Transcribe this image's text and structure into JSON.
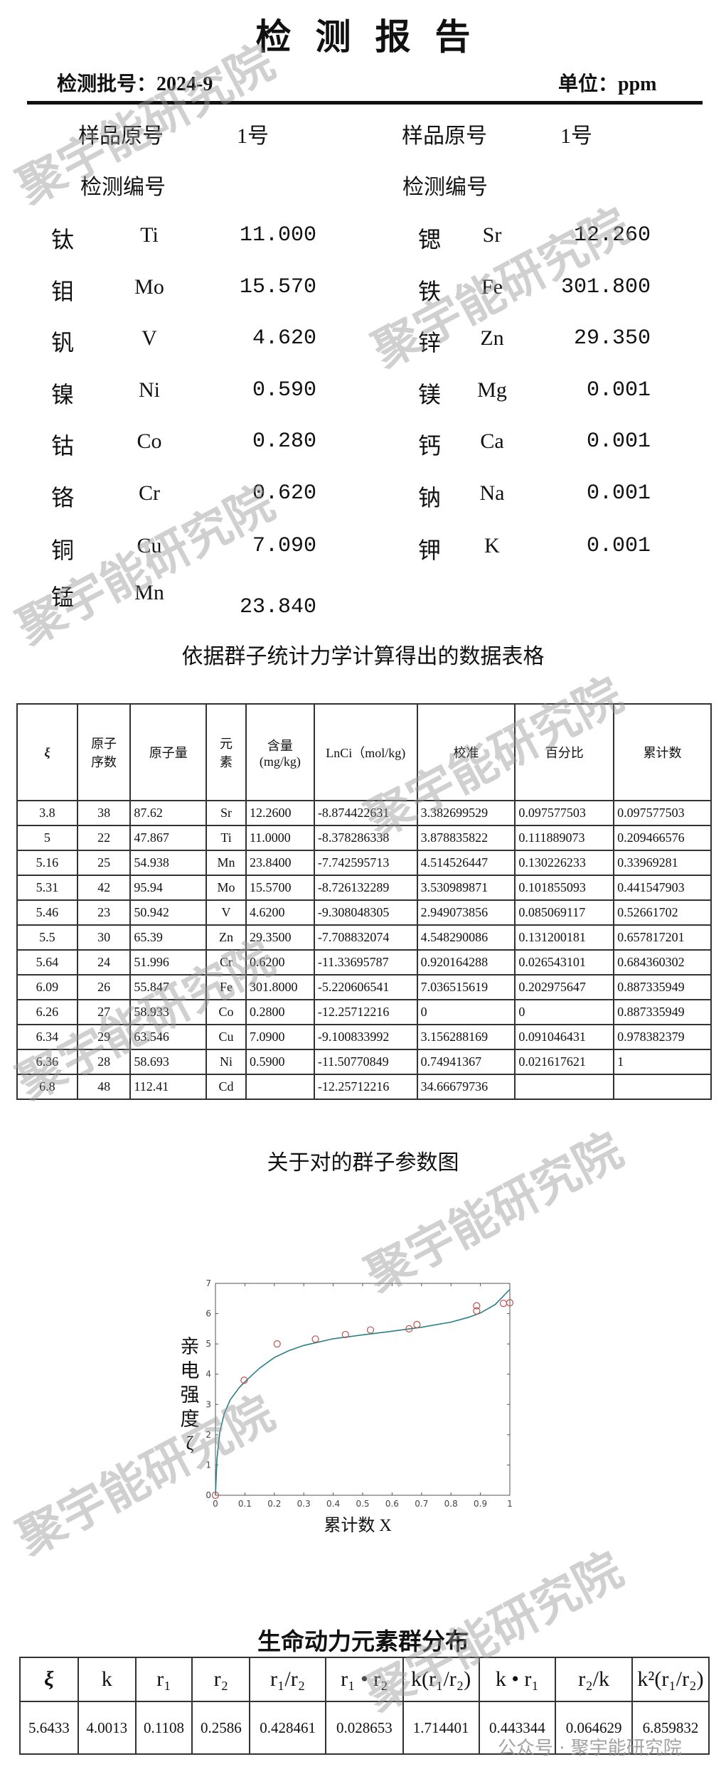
{
  "header": {
    "title": "检测报告",
    "batch_label": "检测批号：2024-9",
    "unit_label": "单位：ppm"
  },
  "sample": {
    "left": {
      "orig_label": "样品原号",
      "orig_value": "1号",
      "code_label": "检测编号"
    },
    "right": {
      "orig_label": "样品原号",
      "orig_value": "1号",
      "code_label": "检测编号"
    }
  },
  "elements_left": [
    {
      "char": "钛",
      "sym": "Ti",
      "val": "11.000"
    },
    {
      "char": "钼",
      "sym": "Mo",
      "val": "15.570"
    },
    {
      "char": "钒",
      "sym": "V",
      "val": "4.620"
    },
    {
      "char": "镍",
      "sym": "Ni",
      "val": "0.590"
    },
    {
      "char": "钴",
      "sym": "Co",
      "val": "0.280"
    },
    {
      "char": "铬",
      "sym": "Cr",
      "val": "0.620"
    },
    {
      "char": "铜",
      "sym": "Cu",
      "val": "7.090"
    },
    {
      "char": "锰",
      "sym": "Mn",
      "val": "23.840"
    }
  ],
  "elements_right": [
    {
      "char": "锶",
      "sym": "Sr",
      "val": "12.260"
    },
    {
      "char": "铁",
      "sym": "Fe",
      "val": "301.800"
    },
    {
      "char": "锌",
      "sym": "Zn",
      "val": "29.350"
    },
    {
      "char": "镁",
      "sym": "Mg",
      "val": "0.001"
    },
    {
      "char": "钙",
      "sym": "Ca",
      "val": "0.001"
    },
    {
      "char": "钠",
      "sym": "Na",
      "val": "0.001"
    },
    {
      "char": "钾",
      "sym": "K",
      "val": "0.001"
    }
  ],
  "table1": {
    "title": "依据群子统计力学计算得出的数据表格",
    "headers": [
      "ξ",
      "原子\n序数",
      "原子量",
      "元\n素",
      "含量\n(mg/kg)",
      "LnCi（mol/kg)",
      "校准",
      "百分比",
      "累计数"
    ],
    "rows": [
      [
        "3.8",
        "38",
        "87.62",
        "Sr",
        "12.2600",
        "-8.874422631",
        "3.382699529",
        "0.097577503",
        "0.097577503"
      ],
      [
        "5",
        "22",
        "47.867",
        "Ti",
        "11.0000",
        "-8.378286338",
        "3.878835822",
        "0.111889073",
        "0.209466576"
      ],
      [
        "5.16",
        "25",
        "54.938",
        "Mn",
        "23.8400",
        "-7.742595713",
        "4.514526447",
        "0.130226233",
        "0.33969281"
      ],
      [
        "5.31",
        "42",
        "95.94",
        "Mo",
        "15.5700",
        "-8.726132289",
        "3.530989871",
        "0.101855093",
        "0.441547903"
      ],
      [
        "5.46",
        "23",
        "50.942",
        "V",
        "4.6200",
        "-9.308048305",
        "2.949073856",
        "0.085069117",
        "0.52661702"
      ],
      [
        "5.5",
        "30",
        "65.39",
        "Zn",
        "29.3500",
        "-7.708832074",
        "4.548290086",
        "0.131200181",
        "0.657817201"
      ],
      [
        "5.64",
        "24",
        "51.996",
        "Cr",
        "0.6200",
        "-11.33695787",
        "0.920164288",
        "0.026543101",
        "0.684360302"
      ],
      [
        "6.09",
        "26",
        "55.847",
        "Fe",
        "301.8000",
        "-5.220606541",
        "7.036515619",
        "0.202975647",
        "0.887335949"
      ],
      [
        "6.26",
        "27",
        "58.933",
        "Co",
        "0.2800",
        "-12.25712216",
        "0",
        "0",
        "0.887335949"
      ],
      [
        "6.34",
        "29",
        "63.546",
        "Cu",
        "7.0900",
        "-9.100833992",
        "3.156288169",
        "0.091046431",
        "0.978382379"
      ],
      [
        "6.36",
        "28",
        "58.693",
        "Ni",
        "0.5900",
        "-11.50770849",
        "0.74941367",
        "0.021617621",
        "1"
      ],
      [
        "6.8",
        "48",
        "112.41",
        "Cd",
        "",
        "-12.25712216",
        "34.66679736",
        "",
        ""
      ]
    ]
  },
  "chart_data": {
    "type": "scatter",
    "title": "关于对的群子参数图",
    "xlabel": "累计数 X",
    "ylabel": "亲电强度ζ",
    "xlim": [
      0,
      1
    ],
    "ylim": [
      0,
      7
    ],
    "xticks": [
      "0",
      "0.1",
      "0.2",
      "0.3",
      "0.4",
      "0.5",
      "0.6",
      "0.7",
      "0.8",
      "0.9",
      "1"
    ],
    "yticks": [
      "0",
      "1",
      "2",
      "3",
      "4",
      "5",
      "6",
      "7"
    ],
    "grid": false,
    "points": [
      [
        0,
        0
      ],
      [
        0.0976,
        3.8
      ],
      [
        0.2095,
        5
      ],
      [
        0.3397,
        5.16
      ],
      [
        0.4415,
        5.31
      ],
      [
        0.5266,
        5.46
      ],
      [
        0.6578,
        5.5
      ],
      [
        0.6844,
        5.64
      ],
      [
        0.8873,
        6.09
      ],
      [
        0.8873,
        6.26
      ],
      [
        0.9784,
        6.34
      ],
      [
        1,
        6.36
      ]
    ],
    "fit_curve": [
      [
        0,
        0
      ],
      [
        0.005,
        1.2
      ],
      [
        0.015,
        2.1
      ],
      [
        0.03,
        2.7
      ],
      [
        0.05,
        3.15
      ],
      [
        0.08,
        3.55
      ],
      [
        0.1,
        3.75
      ],
      [
        0.15,
        4.2
      ],
      [
        0.2,
        4.55
      ],
      [
        0.25,
        4.78
      ],
      [
        0.3,
        4.95
      ],
      [
        0.4,
        5.17
      ],
      [
        0.5,
        5.3
      ],
      [
        0.6,
        5.42
      ],
      [
        0.7,
        5.55
      ],
      [
        0.8,
        5.72
      ],
      [
        0.86,
        5.88
      ],
      [
        0.9,
        6.02
      ],
      [
        0.95,
        6.3
      ],
      [
        1,
        6.8
      ]
    ],
    "colors": {
      "points": "#c0504d",
      "curve": "#2a7f86"
    }
  },
  "table2": {
    "title": "生命动力元素群分布",
    "headers": [
      "ξ",
      "k",
      "r₁",
      "r₂",
      "r₁/r₂",
      "r₁ • r₂",
      "k(r₁/r₂)",
      "k • r₁",
      "r₂/k",
      "k²(r₁/r₂)"
    ],
    "row": [
      "5.6433",
      "4.0013",
      "0.1108",
      "0.2586",
      "0.428461",
      "0.028653",
      "1.714401",
      "0.443344",
      "0.064629",
      "6.859832"
    ]
  },
  "watermark": "聚宇能研究院",
  "wechat_watermark": "公众号 · 聚宇能研究院"
}
